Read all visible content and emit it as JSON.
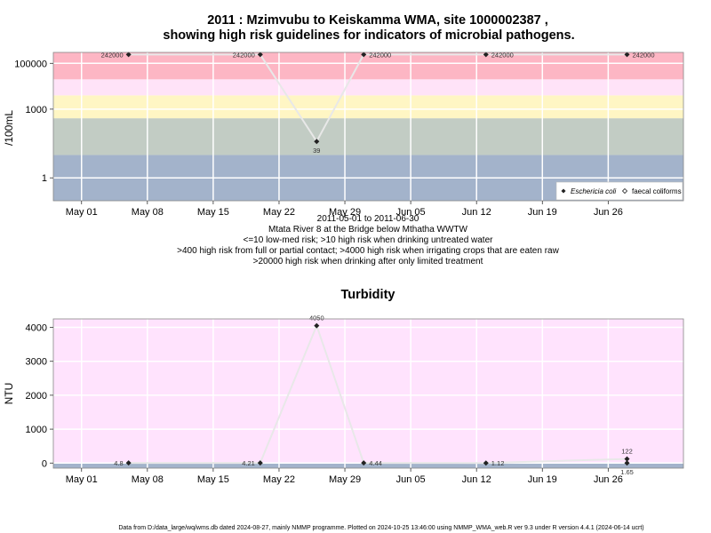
{
  "chart_data": [
    {
      "type": "line",
      "title": "2011 : Mzimvubu to Keiskamma WMA, site 1000002387 ,",
      "subtitle": "showing high risk guidelines for indicators of microbial pathogens.",
      "ylabel": "/100mL",
      "yscale": "log",
      "ylim": [
        0.1,
        300000
      ],
      "xlim": [
        "2011-04-28",
        "2011-07-04"
      ],
      "x_ticks": [
        {
          "label": "May 01",
          "date": "2011-05-01"
        },
        {
          "label": "May 08",
          "date": "2011-05-08"
        },
        {
          "label": "May 15",
          "date": "2011-05-15"
        },
        {
          "label": "May 22",
          "date": "2011-05-22"
        },
        {
          "label": "May 29",
          "date": "2011-05-29"
        },
        {
          "label": "Jun 05",
          "date": "2011-06-05"
        },
        {
          "label": "Jun 12",
          "date": "2011-06-12"
        },
        {
          "label": "Jun 19",
          "date": "2011-06-19"
        },
        {
          "label": "Jun 26",
          "date": "2011-06-26"
        }
      ],
      "y_ticks": [
        {
          "label": "1",
          "value": 1
        },
        {
          "label": "1000",
          "value": 1000
        },
        {
          "label": "100000",
          "value": 100000
        }
      ],
      "bands": [
        {
          "from": 0.1,
          "to": 10,
          "color": "#a3b3cb"
        },
        {
          "from": 10,
          "to": 400,
          "color": "#c2ccc4"
        },
        {
          "from": 400,
          "to": 4000,
          "color": "#fff6c4"
        },
        {
          "from": 4000,
          "to": 20000,
          "color": "#ffe3f8"
        },
        {
          "from": 20000,
          "to": 300000,
          "color": "#fdb6c4"
        }
      ],
      "series": [
        {
          "name": "Eschericia coli",
          "marker": "filled-diamond",
          "x": [
            "2011-05-06",
            "2011-05-20",
            "2011-05-26",
            "2011-05-31",
            "2011-06-13",
            "2011-06-28"
          ],
          "y": [
            242000,
            242000,
            39,
            242000,
            242000,
            242000
          ],
          "labels": [
            "242000",
            "242000",
            "39",
            "242000",
            "242000",
            "242000"
          ],
          "label_side": [
            "left",
            "left",
            "below",
            "right",
            "right",
            "right"
          ]
        }
      ],
      "legend": {
        "placement": "bottom-right",
        "entries": [
          {
            "label": "Eschericia coli",
            "marker": "filled-diamond"
          },
          {
            "label": "faecal coliforms",
            "marker": "open-diamond"
          }
        ]
      },
      "grid": true,
      "notes": [
        "2011-05-01 to 2011-06-30",
        "Mtata River 8 at the Bridge below Mthatha WWTW",
        "<=10 low-med risk; >10 high risk when drinking untreated water",
        ">400 high risk from full or partial contact; >4000 high risk when irrigating crops that are eaten raw",
        ">20000 high risk when drinking after only limited treatment"
      ]
    },
    {
      "type": "line",
      "title": "Turbidity",
      "ylabel": "NTU",
      "ylim": [
        -150,
        4250
      ],
      "xlim": [
        "2011-04-28",
        "2011-07-04"
      ],
      "x_ticks": [
        {
          "label": "May 01",
          "date": "2011-05-01"
        },
        {
          "label": "May 08",
          "date": "2011-05-08"
        },
        {
          "label": "May 15",
          "date": "2011-05-15"
        },
        {
          "label": "May 22",
          "date": "2011-05-22"
        },
        {
          "label": "May 29",
          "date": "2011-05-29"
        },
        {
          "label": "Jun 05",
          "date": "2011-06-05"
        },
        {
          "label": "Jun 12",
          "date": "2011-06-12"
        },
        {
          "label": "Jun 19",
          "date": "2011-06-19"
        },
        {
          "label": "Jun 26",
          "date": "2011-06-26"
        }
      ],
      "y_ticks": [
        {
          "label": "0",
          "value": 0
        },
        {
          "label": "1000",
          "value": 1000
        },
        {
          "label": "2000",
          "value": 2000
        },
        {
          "label": "3000",
          "value": 3000
        },
        {
          "label": "4000",
          "value": 4000
        }
      ],
      "bands": [
        {
          "from": -150,
          "to": 0,
          "color": "#a3b3cb"
        },
        {
          "from": 0,
          "to": 4250,
          "color": "#ffe3fd"
        }
      ],
      "series": [
        {
          "marker": "filled-diamond",
          "x": [
            "2011-05-06",
            "2011-05-20",
            "2011-05-26",
            "2011-05-31",
            "2011-06-13",
            "2011-06-28",
            "2011-06-28"
          ],
          "y": [
            4.8,
            4.21,
            4050,
            4.44,
            1.12,
            122,
            1.65
          ],
          "labels": [
            "4.8",
            "4.21",
            "4050",
            "4.44",
            "1.12",
            "122",
            "1.65"
          ],
          "label_side": [
            "left",
            "left",
            "above",
            "right",
            "right",
            "above",
            "below"
          ]
        }
      ],
      "grid": true
    }
  ],
  "footer": "Data from D:/data_large/wq/wms.db dated 2024-08-27, mainly NMMP programme. Plotted on 2024-10-25 13:46:00 using NMMP_WMA_web.R ver 9.3 under R version 4.4.1 (2024-06-14 ucrt)"
}
